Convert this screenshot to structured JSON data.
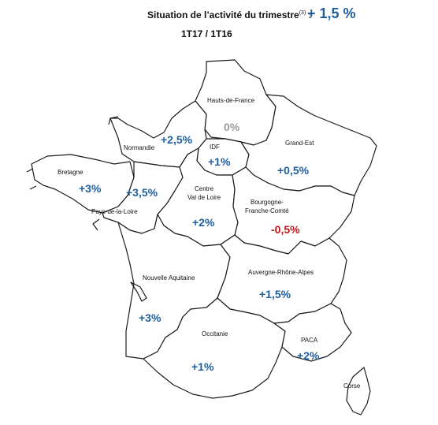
{
  "header": {
    "title": "Situation de l’activité du trimestre",
    "footnote_mark": "(3)",
    "separator": " :",
    "overall_value": "+ 1,5 %",
    "period": "1T17 / 1T16"
  },
  "colors": {
    "positive": "#1f5fa0",
    "neutral": "#9a9a9a",
    "negative": "#c0161b"
  },
  "regions": [
    {
      "name": "Hauts-de-France",
      "value": "0%",
      "tone": "neutral"
    },
    {
      "name": "Normandie",
      "value": "+2,5%",
      "tone": "positive"
    },
    {
      "name": "IDF",
      "value": "+1%",
      "tone": "positive"
    },
    {
      "name": "Grand-Est",
      "value": "+0,5%",
      "tone": "positive"
    },
    {
      "name": "Bretagne",
      "value": "+3%",
      "tone": "positive"
    },
    {
      "name": "Pays-de-la-Loire",
      "value": "+3,5%",
      "tone": "positive"
    },
    {
      "name": "Centre Val de Loire",
      "name_lines": [
        "Centre",
        "Val de Loire"
      ],
      "value": "+2%",
      "tone": "positive"
    },
    {
      "name": "Bourgogne-Franche-Comté",
      "name_lines": [
        "Bourgogne-",
        "Franche-Comté"
      ],
      "value": "-0,5%",
      "tone": "negative"
    },
    {
      "name": "Nouvelle Aquitaine",
      "value": "+3%",
      "tone": "positive"
    },
    {
      "name": "Auvergne-Rhône-Alpes",
      "value": "+1,5%",
      "tone": "positive"
    },
    {
      "name": "Occitanie",
      "value": "+1%",
      "tone": "positive"
    },
    {
      "name": "PACA",
      "value": "+2%",
      "tone": "positive"
    },
    {
      "name": "Corse",
      "value": "",
      "tone": "positive"
    }
  ]
}
